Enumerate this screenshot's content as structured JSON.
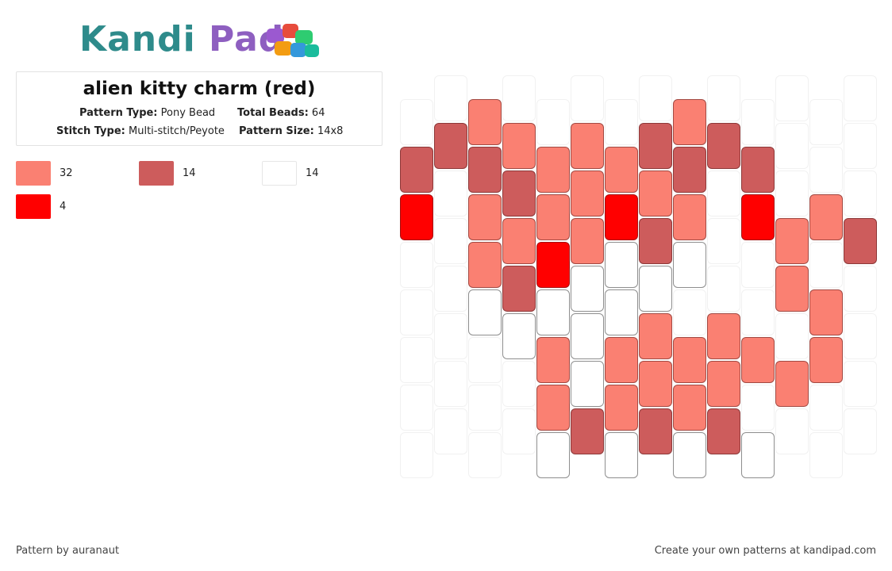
{
  "logo": {
    "part1": "Kandi",
    "part2": "Pad"
  },
  "title": "alien kitty charm (red)",
  "meta": {
    "pattern_type_label": "Pattern Type:",
    "pattern_type": "Pony Bead",
    "total_beads_label": "Total Beads:",
    "total_beads": "64",
    "stitch_type_label": "Stitch Type:",
    "stitch_type": "Multi-stitch/Peyote",
    "pattern_size_label": "Pattern Size:",
    "pattern_size": "14x8"
  },
  "legend": [
    {
      "color": "#fa8072",
      "count": "32"
    },
    {
      "color": "#cd5c5c",
      "count": "14"
    },
    {
      "color": "#ffffff",
      "count": "14"
    },
    {
      "color": "#ff0000",
      "count": "4"
    }
  ],
  "pattern": {
    "columns": [
      [
        "e",
        "A",
        "R",
        "e",
        "e",
        "e",
        "e",
        "e"
      ],
      [
        "e",
        "B",
        "e",
        "e",
        "e",
        "e",
        "e",
        "e"
      ],
      [
        "S",
        "B",
        "S",
        "S",
        "W",
        "e",
        "e",
        "e"
      ],
      [
        "e",
        "S",
        "B",
        "S",
        "B",
        "W",
        "e",
        "e"
      ],
      [
        "e",
        "S",
        "S",
        "R",
        "W",
        "S",
        "S",
        "W"
      ],
      [
        "e",
        "S",
        "S",
        "S",
        "W",
        "W",
        "W",
        "B"
      ],
      [
        "e",
        "S",
        "R",
        "W",
        "W",
        "S",
        "S",
        "W"
      ],
      [
        "e",
        "B",
        "S",
        "B",
        "W",
        "S",
        "S",
        "B"
      ],
      [
        "S",
        "B",
        "S",
        "W",
        "e",
        "S",
        "S",
        "W"
      ],
      [
        "e",
        "B",
        "e",
        "e",
        "e",
        "S",
        "S",
        "B"
      ],
      [
        "e",
        "B",
        "R",
        "e",
        "e",
        "S",
        "e",
        "W"
      ],
      [
        "e",
        "e",
        "e",
        "S",
        "S",
        "e",
        "S",
        "e"
      ],
      [
        "e",
        "e",
        "S",
        "e",
        "S",
        "S",
        "e",
        "e"
      ],
      [
        "e",
        "e",
        "e",
        "B",
        "e",
        "e",
        "e",
        "e"
      ]
    ],
    "column_offsets": [
      1,
      0,
      1,
      0,
      1,
      0,
      1,
      0,
      1,
      0,
      1,
      0,
      1,
      0
    ],
    "colors": {
      "S": "#fa8072",
      "B": "#cd5c5c",
      "W": "#ffffff",
      "R": "#ff0000",
      "A": "#cd5c5c"
    }
  },
  "footer": {
    "left": "Pattern by auranaut",
    "right": "Create your own patterns at kandipad.com"
  }
}
